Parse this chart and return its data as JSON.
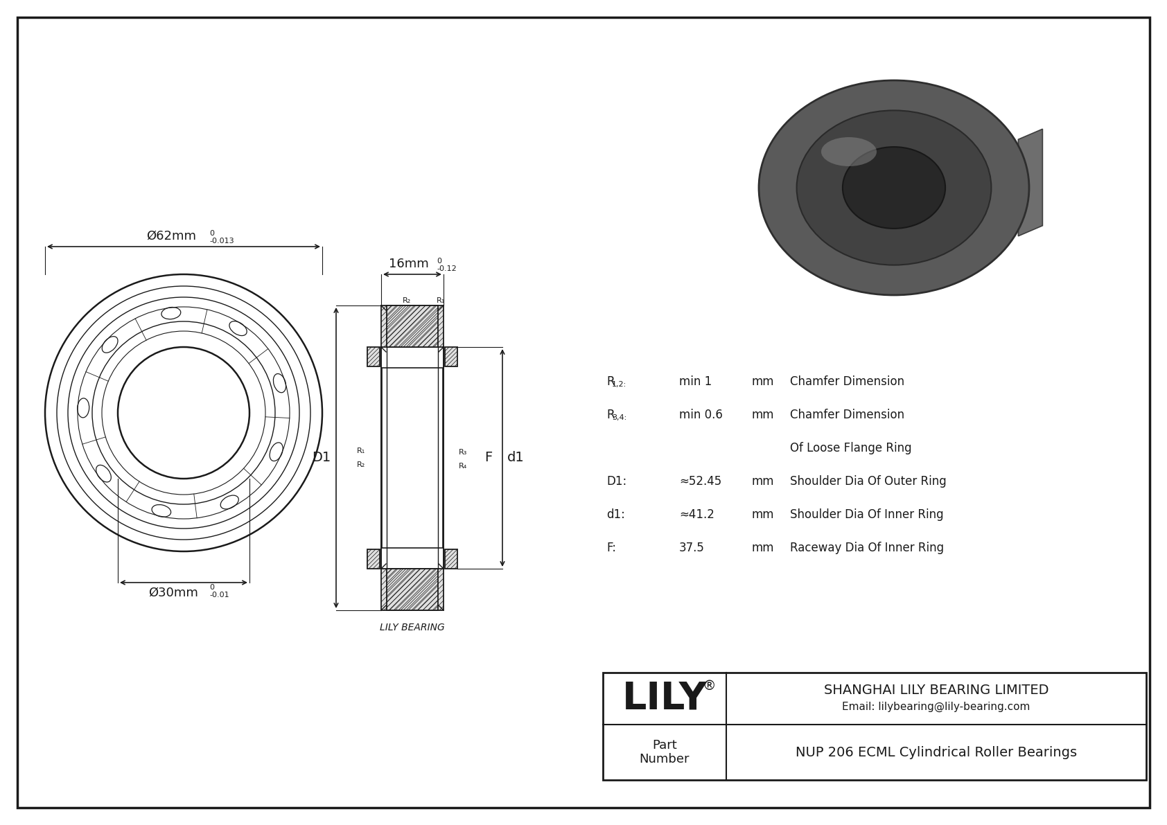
{
  "bg_color": "#ffffff",
  "lc": "#1a1a1a",
  "brand": "LILY",
  "brand_reg": "®",
  "company": "SHANGHAI LILY BEARING LIMITED",
  "email": "Email: lilybearing@lily-bearing.com",
  "part_label": "Part\nNumber",
  "part_number": "NUP 206 ECML Cylindrical Roller Bearings",
  "lily_bearing": "LILY BEARING",
  "dim_outer": "Ø62mm",
  "tol_outer_up": "0",
  "tol_outer_dn": "-0.013",
  "dim_width": "16mm",
  "tol_width_up": "0",
  "tol_width_dn": "-0.12",
  "dim_inner": "Ø30mm",
  "tol_inner_up": "0",
  "tol_inner_dn": "-0.01",
  "lbl_D1": "D1",
  "lbl_F": "F",
  "lbl_d1": "d1",
  "specs": [
    {
      "lbl": "R",
      "sub": "1,2",
      "val": "min 1",
      "unit": "mm",
      "desc": "Chamfer Dimension"
    },
    {
      "lbl": "R",
      "sub": "3,4",
      "val": "min 0.6",
      "unit": "mm",
      "desc": "Chamfer Dimension"
    },
    {
      "lbl": "",
      "sub": "",
      "val": "",
      "unit": "",
      "desc": "Of Loose Flange Ring"
    },
    {
      "lbl": "D1:",
      "sub": "",
      "val": "≈52.45",
      "unit": "mm",
      "desc": "Shoulder Dia Of Outer Ring"
    },
    {
      "lbl": "d1:",
      "sub": "",
      "val": "≈41.2",
      "unit": "mm",
      "desc": "Shoulder Dia Of Inner Ring"
    },
    {
      "lbl": "F:",
      "sub": "",
      "val": "37.5",
      "unit": "mm",
      "desc": "Raceway Dia Of Inner Ring"
    }
  ]
}
